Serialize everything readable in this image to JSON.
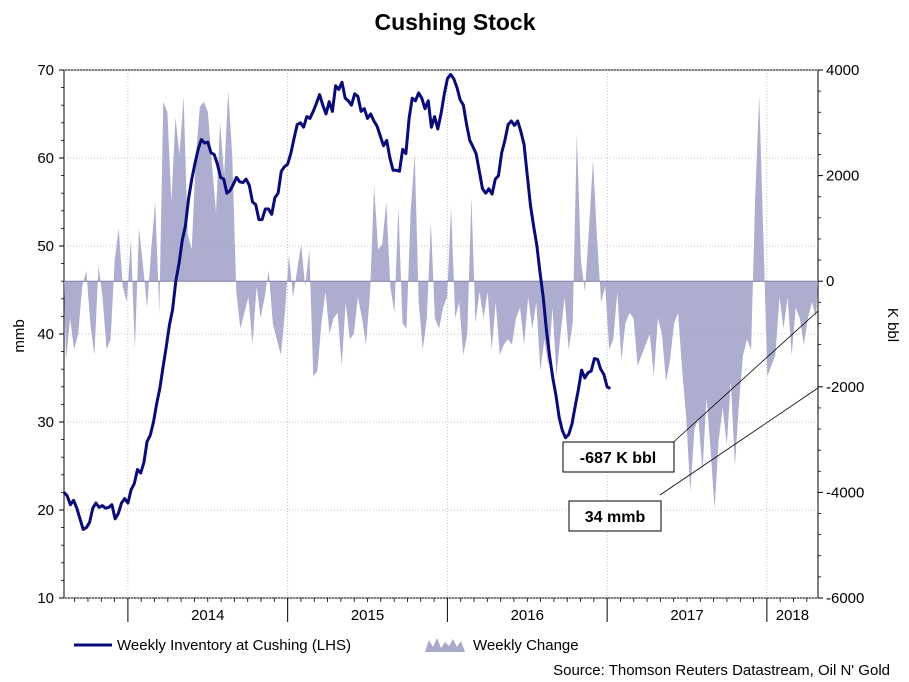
{
  "chart_data": {
    "type": "line",
    "title": "Cushing Stock",
    "ylabel_left": "mmb",
    "ylabel_right": "K bbl",
    "source": "Source: Thomson Reuters Datastream, Oil N' Gold",
    "x_range": [
      2013.6,
      2018.32
    ],
    "ylim_left": [
      10,
      70
    ],
    "ylim_right": [
      -6000,
      4000
    ],
    "yticks_left": [
      "10",
      "20",
      "30",
      "40",
      "50",
      "60",
      "70"
    ],
    "yticks_right": [
      "-6000",
      "-4000",
      "-2000",
      "0",
      "2000",
      "4000"
    ],
    "xticks": [
      {
        "label": "2014",
        "x": 2014.0
      },
      {
        "label": "2015",
        "x": 2015.0
      },
      {
        "label": "2016",
        "x": 2016.0
      },
      {
        "label": "2017",
        "x": 2017.0
      },
      {
        "label": "2018",
        "x": 2018.0
      }
    ],
    "grid": true,
    "legend_position": "bottom",
    "series": [
      {
        "name": "Weekly Inventory at Cushing (LHS)",
        "axis": "left",
        "style": "line",
        "color": "#0a0a78",
        "points": [
          [
            2013.6,
            22.0
          ],
          [
            2013.62,
            21.6
          ],
          [
            2013.64,
            20.6
          ],
          [
            2013.66,
            21.1
          ],
          [
            2013.68,
            20.2
          ],
          [
            2013.7,
            19.0
          ],
          [
            2013.72,
            17.8
          ],
          [
            2013.74,
            18.0
          ],
          [
            2013.76,
            18.6
          ],
          [
            2013.78,
            20.2
          ],
          [
            2013.8,
            20.8
          ],
          [
            2013.82,
            20.3
          ],
          [
            2013.84,
            20.5
          ],
          [
            2013.86,
            20.2
          ],
          [
            2013.88,
            20.3
          ],
          [
            2013.9,
            20.6
          ],
          [
            2013.92,
            19.0
          ],
          [
            2013.94,
            19.6
          ],
          [
            2013.96,
            20.8
          ],
          [
            2013.98,
            21.3
          ],
          [
            2014.0,
            20.8
          ],
          [
            2014.02,
            22.3
          ],
          [
            2014.04,
            23.0
          ],
          [
            2014.06,
            24.6
          ],
          [
            2014.08,
            24.2
          ],
          [
            2014.1,
            25.4
          ],
          [
            2014.12,
            27.8
          ],
          [
            2014.14,
            28.5
          ],
          [
            2014.16,
            30.0
          ],
          [
            2014.18,
            32.1
          ],
          [
            2014.2,
            33.8
          ],
          [
            2014.22,
            36.2
          ],
          [
            2014.24,
            38.5
          ],
          [
            2014.26,
            41.0
          ],
          [
            2014.28,
            42.8
          ],
          [
            2014.3,
            46.0
          ],
          [
            2014.32,
            48.0
          ],
          [
            2014.34,
            50.6
          ],
          [
            2014.36,
            52.3
          ],
          [
            2014.38,
            55.4
          ],
          [
            2014.4,
            57.6
          ],
          [
            2014.42,
            59.4
          ],
          [
            2014.44,
            61.0
          ],
          [
            2014.46,
            62.1
          ],
          [
            2014.48,
            61.7
          ],
          [
            2014.5,
            61.8
          ],
          [
            2014.52,
            60.6
          ],
          [
            2014.54,
            60.4
          ],
          [
            2014.56,
            59.3
          ],
          [
            2014.58,
            57.8
          ],
          [
            2014.6,
            57.6
          ],
          [
            2014.62,
            56.0
          ],
          [
            2014.64,
            56.3
          ],
          [
            2014.66,
            57.0
          ],
          [
            2014.68,
            57.8
          ],
          [
            2014.7,
            57.3
          ],
          [
            2014.72,
            57.2
          ],
          [
            2014.74,
            57.6
          ],
          [
            2014.76,
            56.9
          ],
          [
            2014.78,
            55.0
          ],
          [
            2014.8,
            54.7
          ],
          [
            2014.82,
            53.0
          ],
          [
            2014.84,
            53.0
          ],
          [
            2014.86,
            54.2
          ],
          [
            2014.88,
            54.2
          ],
          [
            2014.9,
            53.6
          ],
          [
            2014.92,
            55.5
          ],
          [
            2014.94,
            56.0
          ],
          [
            2014.96,
            58.5
          ],
          [
            2014.98,
            59.0
          ],
          [
            2015.0,
            59.3
          ],
          [
            2015.02,
            60.5
          ],
          [
            2015.04,
            62.2
          ],
          [
            2015.06,
            63.8
          ],
          [
            2015.08,
            64.0
          ],
          [
            2015.1,
            63.5
          ],
          [
            2015.12,
            64.7
          ],
          [
            2015.14,
            64.5
          ],
          [
            2015.16,
            65.3
          ],
          [
            2015.18,
            66.2
          ],
          [
            2015.2,
            67.2
          ],
          [
            2015.22,
            66.0
          ],
          [
            2015.24,
            65.0
          ],
          [
            2015.26,
            66.4
          ],
          [
            2015.28,
            65.3
          ],
          [
            2015.3,
            68.2
          ],
          [
            2015.32,
            67.8
          ],
          [
            2015.34,
            68.6
          ],
          [
            2015.36,
            66.8
          ],
          [
            2015.38,
            66.5
          ],
          [
            2015.4,
            66.0
          ],
          [
            2015.42,
            67.3
          ],
          [
            2015.44,
            67.0
          ],
          [
            2015.46,
            65.3
          ],
          [
            2015.48,
            65.6
          ],
          [
            2015.5,
            64.5
          ],
          [
            2015.52,
            65.0
          ],
          [
            2015.54,
            64.2
          ],
          [
            2015.56,
            63.6
          ],
          [
            2015.58,
            62.5
          ],
          [
            2015.6,
            61.4
          ],
          [
            2015.62,
            62.0
          ],
          [
            2015.64,
            60.0
          ],
          [
            2015.66,
            58.6
          ],
          [
            2015.68,
            58.6
          ],
          [
            2015.7,
            58.5
          ],
          [
            2015.72,
            61.0
          ],
          [
            2015.74,
            60.5
          ],
          [
            2015.76,
            64.5
          ],
          [
            2015.78,
            66.8
          ],
          [
            2015.8,
            66.5
          ],
          [
            2015.82,
            67.4
          ],
          [
            2015.84,
            66.8
          ],
          [
            2015.86,
            65.6
          ],
          [
            2015.88,
            66.5
          ],
          [
            2015.9,
            63.5
          ],
          [
            2015.92,
            64.7
          ],
          [
            2015.94,
            63.3
          ],
          [
            2015.96,
            65.0
          ],
          [
            2015.98,
            67.2
          ],
          [
            2016.0,
            69.0
          ],
          [
            2016.02,
            69.5
          ],
          [
            2016.04,
            69.0
          ],
          [
            2016.06,
            68.0
          ],
          [
            2016.08,
            66.6
          ],
          [
            2016.1,
            66.0
          ],
          [
            2016.12,
            63.8
          ],
          [
            2016.14,
            62.0
          ],
          [
            2016.16,
            61.3
          ],
          [
            2016.18,
            60.5
          ],
          [
            2016.2,
            58.5
          ],
          [
            2016.22,
            56.5
          ],
          [
            2016.24,
            56.0
          ],
          [
            2016.26,
            56.5
          ],
          [
            2016.28,
            55.9
          ],
          [
            2016.3,
            57.6
          ],
          [
            2016.32,
            58.0
          ],
          [
            2016.34,
            60.6
          ],
          [
            2016.36,
            62.0
          ],
          [
            2016.38,
            63.8
          ],
          [
            2016.4,
            64.2
          ],
          [
            2016.42,
            63.7
          ],
          [
            2016.44,
            64.2
          ],
          [
            2016.46,
            63.0
          ],
          [
            2016.48,
            61.5
          ],
          [
            2016.5,
            58.0
          ],
          [
            2016.52,
            54.6
          ],
          [
            2016.54,
            52.2
          ],
          [
            2016.56,
            50.1
          ],
          [
            2016.58,
            47.0
          ],
          [
            2016.6,
            44.2
          ],
          [
            2016.62,
            40.5
          ],
          [
            2016.64,
            37.5
          ],
          [
            2016.66,
            35.0
          ],
          [
            2016.68,
            33.0
          ],
          [
            2016.7,
            30.5
          ],
          [
            2016.72,
            29.0
          ],
          [
            2016.74,
            28.2
          ],
          [
            2016.76,
            28.6
          ],
          [
            2016.78,
            29.8
          ],
          [
            2016.8,
            31.8
          ],
          [
            2016.82,
            33.7
          ],
          [
            2016.84,
            35.9
          ],
          [
            2016.86,
            35.0
          ],
          [
            2016.88,
            35.6
          ],
          [
            2016.9,
            35.8
          ],
          [
            2016.92,
            37.2
          ],
          [
            2016.94,
            37.1
          ],
          [
            2016.96,
            36.0
          ],
          [
            2016.98,
            35.4
          ],
          [
            2017.0,
            34.0
          ],
          [
            2017.02,
            33.8
          ]
        ],
        "note": "x values are given as decimal years"
      },
      {
        "name": "Weekly Change",
        "axis": "right",
        "style": "area",
        "color": "#a9a9cc",
        "values_k_bbl": [
          -1500,
          -700,
          -1300,
          -1000,
          -100,
          200,
          -800,
          -1400,
          300,
          -300,
          -1300,
          -1100,
          400,
          1000,
          -100,
          -400,
          800,
          -1300,
          1000,
          300,
          -500,
          600,
          1500,
          -600,
          3400,
          3200,
          1500,
          3100,
          2400,
          3500,
          900,
          600,
          2300,
          3300,
          3400,
          3200,
          2200,
          1300,
          3000,
          2000,
          3600,
          2400,
          -200,
          -900,
          -600,
          -300,
          -1200,
          -100,
          -700,
          -300,
          200,
          -800,
          -1100,
          -1400,
          -600,
          500,
          -300,
          200,
          700,
          -100,
          600,
          -1800,
          -1700,
          -800,
          -200,
          -1000,
          -700,
          -600,
          -1600,
          -400,
          -1100,
          -1000,
          -300,
          -700,
          -1200,
          -200,
          1800,
          600,
          700,
          1500,
          -100,
          -600,
          1400,
          -800,
          -900,
          1300,
          2400,
          -400,
          -1300,
          -700,
          1100,
          -700,
          -900,
          -500,
          -300,
          1400,
          -700,
          -400,
          -1400,
          -1000,
          1600,
          -800,
          -200,
          -700,
          -200,
          -1300,
          -400,
          -1400,
          -1200,
          -1100,
          -1200,
          -700,
          -500,
          -1200,
          -300,
          -900,
          -400,
          -1700,
          -1100,
          -1600,
          -500,
          -1800,
          -1000,
          -300,
          -1300,
          -800,
          2800,
          400,
          -200,
          1000,
          2300,
          800,
          -400,
          -100,
          -1300,
          -1100,
          -200,
          -1500,
          -800,
          -600,
          -700,
          -1600,
          -1400,
          -1200,
          -1000,
          -1800,
          -700,
          -1000,
          -1900,
          -1500,
          -800,
          -600,
          -1700,
          -2600,
          -4000,
          -2800,
          -2600,
          -3600,
          -2200,
          -3200,
          -4300,
          -3000,
          -2400,
          -3100,
          -1900,
          -3500,
          -2300,
          -1400,
          -1100,
          -1300,
          1600,
          3500,
          900,
          -1800,
          -1600,
          -1400,
          -300,
          -900,
          -300,
          -1400,
          -500,
          -700,
          -1200,
          -700,
          -400,
          -687
        ]
      }
    ],
    "annotations": [
      {
        "text": "-687 K bbl",
        "points_to": "Weekly Change",
        "value": -687
      },
      {
        "text": "34 mmb",
        "points_to": "Weekly Inventory at Cushing (LHS)",
        "value": 34
      }
    ]
  }
}
